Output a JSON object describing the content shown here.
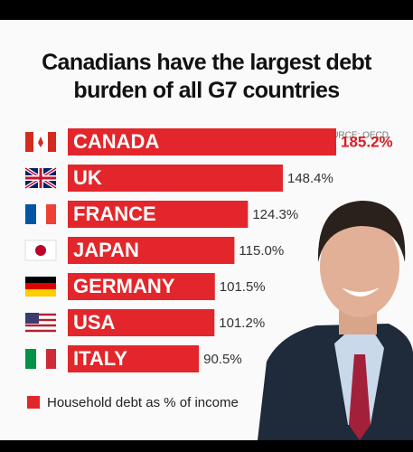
{
  "chart_data": {
    "type": "bar",
    "orientation": "horizontal",
    "title": "Canadians have the largest debt burden of all G7 countries",
    "source": "SOURCE: OECD",
    "categories": [
      "CANADA",
      "UK",
      "FRANCE",
      "JAPAN",
      "GERMANY",
      "USA",
      "ITALY"
    ],
    "series": [
      {
        "name": "Household debt as % of income",
        "color": "#e3262b",
        "values": [
          185.2,
          148.4,
          124.3,
          115.0,
          101.5,
          101.2,
          90.5
        ],
        "value_labels": [
          "185.2%",
          "148.4%",
          "124.3%",
          "115.0%",
          "101.5%",
          "101.2%",
          "90.5%"
        ]
      }
    ],
    "legend": "bottom-left"
  }
}
